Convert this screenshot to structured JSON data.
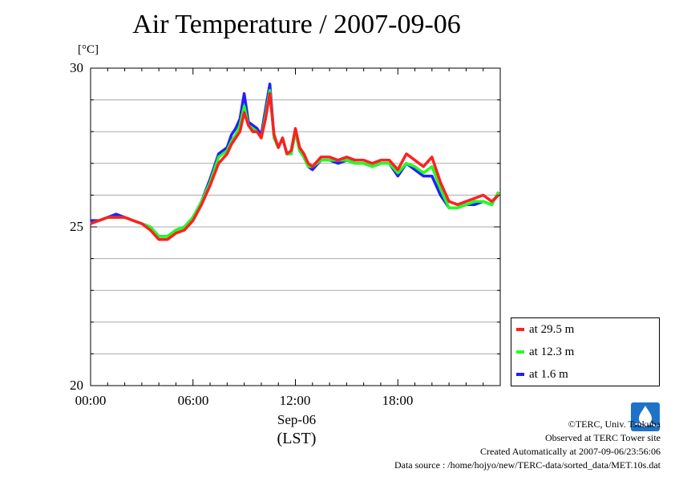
{
  "header": {
    "title": "Air Temperature / 2007-09-06",
    "unit": "[°C]"
  },
  "axes": {
    "x_ticks": [
      "00:00",
      "06:00",
      "12:00",
      "18:00"
    ],
    "y_ticks": [
      "30",
      "25",
      "20"
    ],
    "xlabel_date": "Sep-06",
    "xlabel_tz": "(LST)"
  },
  "legend": {
    "items": [
      {
        "label": "at 29.5 m",
        "color": "#ff2020"
      },
      {
        "label": "at 12.3 m",
        "color": "#20ff20"
      },
      {
        "label": "at 1.6 m",
        "color": "#2020ff"
      }
    ]
  },
  "credits": {
    "line1": "©TERC, Univ. Tsukuba",
    "line2": "Observed at TERC Tower site",
    "line3": "Created Automatically at 2007-09-06/23:56:06",
    "line4": "Data source : /home/hojyo/new/TERC-data/sorted_data/MET.10s.dat",
    "logo_text": "TERC",
    "logo_icon": "terc-logo"
  },
  "chart_data": {
    "type": "line",
    "title": "Air Temperature / 2007-09-06",
    "ylabel": "[°C]",
    "xlabel": "Sep-06 (LST)",
    "xlim": [
      0,
      24
    ],
    "ylim": [
      20,
      30
    ],
    "grid": "horizontal",
    "legend_position": "bottom-right",
    "x": [
      0,
      0.5,
      1,
      1.5,
      2,
      2.5,
      3,
      3.5,
      4,
      4.5,
      5,
      5.5,
      6,
      6.5,
      7,
      7.5,
      8,
      8.25,
      8.5,
      8.75,
      9,
      9.25,
      9.5,
      9.75,
      10,
      10.25,
      10.5,
      10.75,
      11,
      11.25,
      11.5,
      11.75,
      12,
      12.25,
      12.5,
      12.75,
      13,
      13.5,
      14,
      14.5,
      15,
      15.5,
      16,
      16.5,
      17,
      17.5,
      18,
      18.5,
      19,
      19.5,
      20,
      20.5,
      21,
      21.5,
      22,
      22.5,
      23,
      23.5,
      23.9
    ],
    "series": [
      {
        "name": "at 29.5 m",
        "color": "#ff2020",
        "values": [
          25.1,
          25.2,
          25.3,
          25.3,
          25.3,
          25.2,
          25.1,
          24.9,
          24.6,
          24.6,
          24.8,
          24.9,
          25.2,
          25.7,
          26.3,
          27.0,
          27.3,
          27.6,
          27.8,
          28.0,
          28.6,
          28.2,
          28.0,
          28.0,
          27.8,
          28.4,
          29.2,
          27.9,
          27.5,
          27.8,
          27.3,
          27.4,
          28.1,
          27.5,
          27.3,
          27.0,
          26.9,
          27.2,
          27.2,
          27.1,
          27.2,
          27.1,
          27.1,
          27.0,
          27.1,
          27.1,
          26.8,
          27.3,
          27.1,
          26.9,
          27.2,
          26.4,
          25.8,
          25.7,
          25.8,
          25.9,
          26.0,
          25.8,
          26.0
        ]
      },
      {
        "name": "at 12.3 m",
        "color": "#20ff20",
        "values": [
          25.1,
          25.2,
          25.3,
          25.3,
          25.3,
          25.2,
          25.1,
          25.0,
          24.7,
          24.7,
          24.9,
          25.0,
          25.3,
          25.8,
          26.4,
          27.2,
          27.4,
          27.7,
          27.9,
          28.2,
          28.8,
          28.2,
          28.1,
          28.0,
          27.8,
          28.5,
          29.3,
          27.8,
          27.5,
          27.8,
          27.3,
          27.3,
          28.0,
          27.4,
          27.2,
          26.9,
          26.9,
          27.1,
          27.1,
          27.1,
          27.1,
          27.0,
          27.0,
          26.9,
          27.0,
          27.0,
          26.7,
          27.0,
          26.9,
          26.7,
          26.9,
          26.2,
          25.6,
          25.6,
          25.7,
          25.8,
          25.8,
          25.7,
          26.1
        ]
      },
      {
        "name": "at 1.6 m",
        "color": "#2020ff",
        "values": [
          25.2,
          25.2,
          25.3,
          25.4,
          25.3,
          25.2,
          25.1,
          25.0,
          24.7,
          24.7,
          24.9,
          25.0,
          25.3,
          25.8,
          26.5,
          27.3,
          27.5,
          27.9,
          28.1,
          28.4,
          29.2,
          28.3,
          28.2,
          28.1,
          27.9,
          28.7,
          29.5,
          27.8,
          27.5,
          27.8,
          27.3,
          27.3,
          28.0,
          27.4,
          27.2,
          26.9,
          26.8,
          27.1,
          27.1,
          27.0,
          27.1,
          27.0,
          27.0,
          26.9,
          27.0,
          27.0,
          26.6,
          27.0,
          26.8,
          26.6,
          26.6,
          26.0,
          25.6,
          25.6,
          25.7,
          25.7,
          25.8,
          25.7,
          26.1
        ]
      }
    ]
  }
}
